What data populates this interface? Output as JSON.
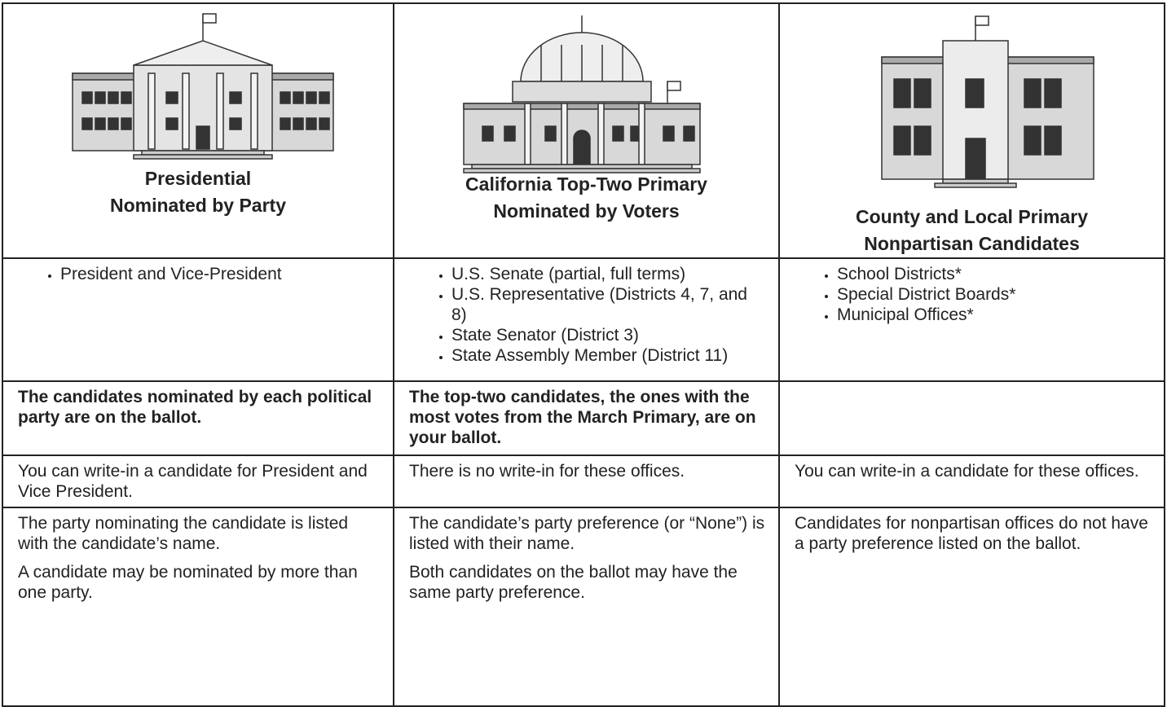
{
  "table": {
    "headers": [
      {
        "line1": "Presidential",
        "line2": "Nominated by Party"
      },
      {
        "line1": "California Top-Two Primary",
        "line2": "Nominated by Voters"
      },
      {
        "line1": "County and Local Primary",
        "line2": "Nonpartisan Candidates"
      }
    ],
    "offices": [
      [
        "President and Vice-President"
      ],
      [
        "U.S. Senate (partial, full terms)",
        "U.S. Representative (Districts 4, 7, and 8)",
        "State Senator (District 3)",
        "State Assembly Member (District 11)"
      ],
      [
        "School Districts*",
        "Special District Boards*",
        "Municipal Offices*"
      ]
    ],
    "ballot_rule": [
      "The candidates nominated by each political party are on the ballot.",
      "The top-two candidates, the ones with the most votes from the March Primary, are on your ballot."
    ],
    "write_in": [
      "You can write-in a candidate for President and Vice President.",
      "There is no write-in for these offices.",
      "You can write-in a candidate for these offices."
    ],
    "party_listing": [
      [
        "The party nominating the candidate is listed with the candidate’s name.",
        "A candidate may be nominated by more than one party."
      ],
      [
        "The candidate’s party preference (or “None”) is listed with their name.",
        "Both candidates on the ballot may have the same party preference."
      ],
      [
        "Candidates for nonpartisan offices do not have a party preference listed on the ballot."
      ]
    ]
  }
}
